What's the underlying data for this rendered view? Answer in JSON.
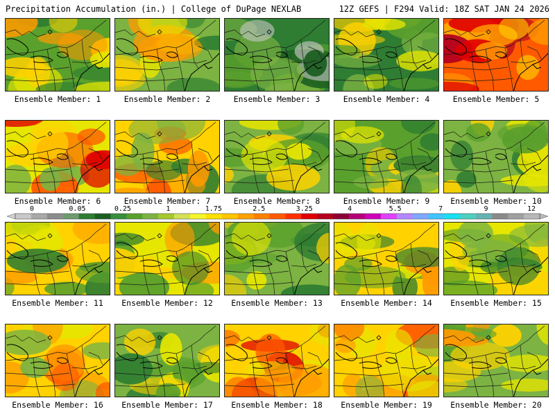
{
  "header": {
    "title": "Precipitation Accumulation (in.) | College of DuPage NEXLAB",
    "model_info": "12Z GEFS | F294 Valid: 18Z SAT JAN 24 2026"
  },
  "colorbar": {
    "tick_labels": [
      "0",
      "0.05",
      "0.25",
      "1",
      "1.75",
      "2.5",
      "3.25",
      "4",
      "5.5",
      "7",
      "9",
      "12"
    ],
    "colors": [
      "#c8c8c8",
      "#a8a8a8",
      "#8c8c8c",
      "#6e9a6e",
      "#2e7d32",
      "#1b5e20",
      "#388e3c",
      "#5aa02c",
      "#7cb342",
      "#a5c82d",
      "#d4e157",
      "#f5f52a",
      "#ffe000",
      "#ffc400",
      "#ffa000",
      "#ff8000",
      "#ff5a00",
      "#ff3000",
      "#e00000",
      "#b4001e",
      "#8c0032",
      "#b40078",
      "#d000b8",
      "#e040fb",
      "#b388ff",
      "#7fa8ff",
      "#40c4ff",
      "#18e0f0",
      "#4dd0c0",
      "#66b2b2",
      "#8a8a8a",
      "#a0a0a0",
      "#b8b8b8"
    ]
  },
  "members": [
    {
      "label": "Ensemble Member: 1",
      "palette": [
        "#5aa02c",
        "#e6e600",
        "#ffd200",
        "#ff9a00",
        "#2e7d32"
      ]
    },
    {
      "label": "Ensemble Member: 2",
      "palette": [
        "#7cb342",
        "#ffd200",
        "#ff9a00",
        "#2e7d32",
        "#e6e600"
      ]
    },
    {
      "label": "Ensemble Member: 3",
      "palette": [
        "#2e7d32",
        "#5aa02c",
        "#7cb342",
        "#1b5e20",
        "#c8c8c8"
      ]
    },
    {
      "label": "Ensemble Member: 4",
      "palette": [
        "#2e7d32",
        "#7cb342",
        "#e6e600",
        "#5aa02c",
        "#ffd200"
      ]
    },
    {
      "label": "Ensemble Member: 5",
      "palette": [
        "#ff5a00",
        "#e00000",
        "#ff9a00",
        "#ffd200",
        "#b4001e"
      ]
    },
    {
      "label": "Ensemble Member: 6",
      "palette": [
        "#e6e600",
        "#ffd200",
        "#7cb342",
        "#ff5a00",
        "#e00000"
      ]
    },
    {
      "label": "Ensemble Member: 7",
      "palette": [
        "#ffd200",
        "#ff5a00",
        "#7cb342",
        "#2e7d32",
        "#ff9a00"
      ]
    },
    {
      "label": "Ensemble Member: 8",
      "palette": [
        "#7cb342",
        "#5aa02c",
        "#e6e600",
        "#2e7d32",
        "#ffd200"
      ]
    },
    {
      "label": "Ensemble Member: 9",
      "palette": [
        "#5aa02c",
        "#2e7d32",
        "#7cb342",
        "#e6e600",
        "#ffd200"
      ]
    },
    {
      "label": "Ensemble Member: 10",
      "palette": [
        "#7cb342",
        "#e6e600",
        "#5aa02c",
        "#2e7d32",
        "#ffd200"
      ]
    },
    {
      "label": "Ensemble Member: 11",
      "palette": [
        "#ffd200",
        "#5aa02c",
        "#2e7d32",
        "#ff9a00",
        "#e6e600"
      ]
    },
    {
      "label": "Ensemble Member: 12",
      "palette": [
        "#e6e600",
        "#ffd200",
        "#5aa02c",
        "#ff9a00",
        "#2e7d32"
      ]
    },
    {
      "label": "Ensemble Member: 13",
      "palette": [
        "#7cb342",
        "#5aa02c",
        "#e6e600",
        "#2e7d32",
        "#ffd200"
      ]
    },
    {
      "label": "Ensemble Member: 14",
      "palette": [
        "#ffd200",
        "#e6e600",
        "#5aa02c",
        "#ff9a00",
        "#2e7d32"
      ]
    },
    {
      "label": "Ensemble Member: 15",
      "palette": [
        "#e6e600",
        "#7cb342",
        "#5aa02c",
        "#ffd200",
        "#2e7d32"
      ]
    },
    {
      "label": "Ensemble Member: 16",
      "palette": [
        "#ffd200",
        "#ff9a00",
        "#7cb342",
        "#e6e600",
        "#ff5a00"
      ]
    },
    {
      "label": "Ensemble Member: 17",
      "palette": [
        "#7cb342",
        "#5aa02c",
        "#2e7d32",
        "#e6e600",
        "#ffd200"
      ]
    },
    {
      "label": "Ensemble Member: 18",
      "palette": [
        "#ffd200",
        "#ff9a00",
        "#ff5a00",
        "#e6e600",
        "#e00000"
      ]
    },
    {
      "label": "Ensemble Member: 19",
      "palette": [
        "#ffd200",
        "#e6e600",
        "#ff9a00",
        "#7cb342",
        "#ff5a00"
      ]
    },
    {
      "label": "Ensemble Member: 20",
      "palette": [
        "#7cb342",
        "#e6e600",
        "#ffd200",
        "#5aa02c",
        "#ff9a00"
      ]
    }
  ]
}
